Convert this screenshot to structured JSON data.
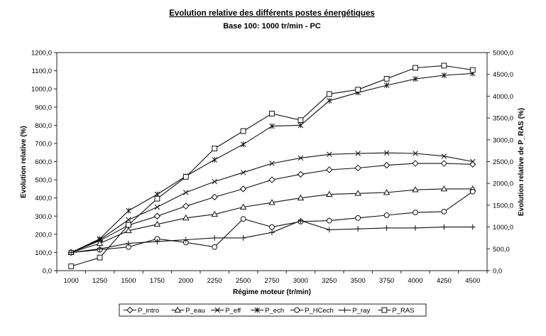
{
  "chart_data": {
    "type": "line",
    "title": "Evolution relative des différents postes énergétiques",
    "subtitle": "Base 100: 1000 tr/min - PC",
    "xlabel": "Régime moteur (tr/min)",
    "ylabel": "Evolution relative (%)",
    "y2label": "Evolution relative de P_RAS (%)",
    "x": [
      1000,
      1250,
      1500,
      1750,
      2000,
      2250,
      2500,
      2750,
      3000,
      3250,
      3500,
      3750,
      4000,
      4250,
      4500
    ],
    "x_tick_labels": [
      "1000",
      "1250",
      "1500",
      "1750",
      "2000",
      "2250",
      "2500",
      "2750",
      "3000",
      "3250",
      "3500",
      "3750",
      "4000",
      "4250",
      "4500"
    ],
    "ylim": [
      0,
      1200
    ],
    "y_ticks": [
      0,
      100,
      200,
      300,
      400,
      500,
      600,
      700,
      800,
      900,
      1000,
      1100,
      1200
    ],
    "y_tick_labels": [
      "0,0",
      "100,0",
      "200,0",
      "300,0",
      "400,0",
      "500,0",
      "600,0",
      "700,0",
      "800,0",
      "900,0",
      "1000,0",
      "1100,0",
      "1200,0"
    ],
    "y2lim": [
      0,
      5000
    ],
    "y2_ticks": [
      0,
      500,
      1000,
      1500,
      2000,
      2500,
      3000,
      3500,
      4000,
      4500,
      5000
    ],
    "y2_tick_labels": [
      "0,0",
      "500,0",
      "1000,0",
      "1500,0",
      "2000,0",
      "2500,0",
      "3000,0",
      "3500,0",
      "4000,0",
      "4500,0",
      "5000,0"
    ],
    "grid": false,
    "legend_position": "bottom",
    "series": [
      {
        "name": "P_intro",
        "marker": "diamond",
        "axis": "left",
        "values": [
          100,
          165,
          250,
          300,
          355,
          405,
          450,
          500,
          530,
          555,
          565,
          580,
          590,
          590,
          585
        ]
      },
      {
        "name": "P_eau",
        "marker": "triangle",
        "axis": "left",
        "values": [
          100,
          150,
          220,
          255,
          290,
          310,
          350,
          375,
          400,
          420,
          425,
          430,
          445,
          450,
          450
        ]
      },
      {
        "name": "P_eff",
        "marker": "x",
        "axis": "left",
        "values": [
          100,
          170,
          280,
          350,
          430,
          490,
          540,
          590,
          620,
          640,
          645,
          648,
          645,
          630,
          600
        ]
      },
      {
        "name": "P_ech",
        "marker": "asterisk",
        "axis": "left",
        "values": [
          100,
          175,
          330,
          420,
          520,
          610,
          695,
          795,
          800,
          935,
          980,
          1020,
          1055,
          1075,
          1085
        ]
      },
      {
        "name": "P_HCech",
        "marker": "circle",
        "axis": "left",
        "values": [
          100,
          115,
          130,
          175,
          155,
          130,
          285,
          240,
          270,
          275,
          290,
          305,
          320,
          325,
          435
        ]
      },
      {
        "name": "P_ray",
        "marker": "plus",
        "axis": "left",
        "values": [
          100,
          120,
          150,
          160,
          170,
          180,
          180,
          210,
          275,
          225,
          230,
          235,
          235,
          240,
          240
        ]
      },
      {
        "name": "P_RAS",
        "marker": "square",
        "axis": "right",
        "values": [
          100,
          300,
          1050,
          1650,
          2150,
          2800,
          3200,
          3600,
          3450,
          4050,
          4150,
          4400,
          4650,
          4700,
          4600
        ]
      }
    ]
  }
}
